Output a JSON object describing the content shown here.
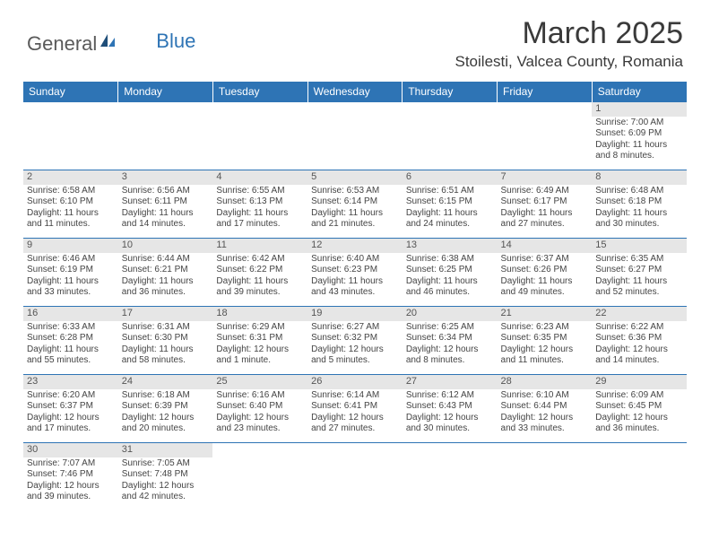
{
  "logo": {
    "general": "General",
    "blue": "Blue"
  },
  "title": "March 2025",
  "location": "Stoilesti, Valcea County, Romania",
  "colors": {
    "header_bg": "#2e74b5",
    "header_text": "#ffffff",
    "border": "#2e74b5",
    "daynum_bg": "#e6e6e6"
  },
  "weekdays": [
    "Sunday",
    "Monday",
    "Tuesday",
    "Wednesday",
    "Thursday",
    "Friday",
    "Saturday"
  ],
  "weeks": [
    [
      {
        "n": "",
        "sr": "",
        "ss": "",
        "dl": ""
      },
      {
        "n": "",
        "sr": "",
        "ss": "",
        "dl": ""
      },
      {
        "n": "",
        "sr": "",
        "ss": "",
        "dl": ""
      },
      {
        "n": "",
        "sr": "",
        "ss": "",
        "dl": ""
      },
      {
        "n": "",
        "sr": "",
        "ss": "",
        "dl": ""
      },
      {
        "n": "",
        "sr": "",
        "ss": "",
        "dl": ""
      },
      {
        "n": "1",
        "sr": "Sunrise: 7:00 AM",
        "ss": "Sunset: 6:09 PM",
        "dl": "Daylight: 11 hours and 8 minutes."
      }
    ],
    [
      {
        "n": "2",
        "sr": "Sunrise: 6:58 AM",
        "ss": "Sunset: 6:10 PM",
        "dl": "Daylight: 11 hours and 11 minutes."
      },
      {
        "n": "3",
        "sr": "Sunrise: 6:56 AM",
        "ss": "Sunset: 6:11 PM",
        "dl": "Daylight: 11 hours and 14 minutes."
      },
      {
        "n": "4",
        "sr": "Sunrise: 6:55 AM",
        "ss": "Sunset: 6:13 PM",
        "dl": "Daylight: 11 hours and 17 minutes."
      },
      {
        "n": "5",
        "sr": "Sunrise: 6:53 AM",
        "ss": "Sunset: 6:14 PM",
        "dl": "Daylight: 11 hours and 21 minutes."
      },
      {
        "n": "6",
        "sr": "Sunrise: 6:51 AM",
        "ss": "Sunset: 6:15 PM",
        "dl": "Daylight: 11 hours and 24 minutes."
      },
      {
        "n": "7",
        "sr": "Sunrise: 6:49 AM",
        "ss": "Sunset: 6:17 PM",
        "dl": "Daylight: 11 hours and 27 minutes."
      },
      {
        "n": "8",
        "sr": "Sunrise: 6:48 AM",
        "ss": "Sunset: 6:18 PM",
        "dl": "Daylight: 11 hours and 30 minutes."
      }
    ],
    [
      {
        "n": "9",
        "sr": "Sunrise: 6:46 AM",
        "ss": "Sunset: 6:19 PM",
        "dl": "Daylight: 11 hours and 33 minutes."
      },
      {
        "n": "10",
        "sr": "Sunrise: 6:44 AM",
        "ss": "Sunset: 6:21 PM",
        "dl": "Daylight: 11 hours and 36 minutes."
      },
      {
        "n": "11",
        "sr": "Sunrise: 6:42 AM",
        "ss": "Sunset: 6:22 PM",
        "dl": "Daylight: 11 hours and 39 minutes."
      },
      {
        "n": "12",
        "sr": "Sunrise: 6:40 AM",
        "ss": "Sunset: 6:23 PM",
        "dl": "Daylight: 11 hours and 43 minutes."
      },
      {
        "n": "13",
        "sr": "Sunrise: 6:38 AM",
        "ss": "Sunset: 6:25 PM",
        "dl": "Daylight: 11 hours and 46 minutes."
      },
      {
        "n": "14",
        "sr": "Sunrise: 6:37 AM",
        "ss": "Sunset: 6:26 PM",
        "dl": "Daylight: 11 hours and 49 minutes."
      },
      {
        "n": "15",
        "sr": "Sunrise: 6:35 AM",
        "ss": "Sunset: 6:27 PM",
        "dl": "Daylight: 11 hours and 52 minutes."
      }
    ],
    [
      {
        "n": "16",
        "sr": "Sunrise: 6:33 AM",
        "ss": "Sunset: 6:28 PM",
        "dl": "Daylight: 11 hours and 55 minutes."
      },
      {
        "n": "17",
        "sr": "Sunrise: 6:31 AM",
        "ss": "Sunset: 6:30 PM",
        "dl": "Daylight: 11 hours and 58 minutes."
      },
      {
        "n": "18",
        "sr": "Sunrise: 6:29 AM",
        "ss": "Sunset: 6:31 PM",
        "dl": "Daylight: 12 hours and 1 minute."
      },
      {
        "n": "19",
        "sr": "Sunrise: 6:27 AM",
        "ss": "Sunset: 6:32 PM",
        "dl": "Daylight: 12 hours and 5 minutes."
      },
      {
        "n": "20",
        "sr": "Sunrise: 6:25 AM",
        "ss": "Sunset: 6:34 PM",
        "dl": "Daylight: 12 hours and 8 minutes."
      },
      {
        "n": "21",
        "sr": "Sunrise: 6:23 AM",
        "ss": "Sunset: 6:35 PM",
        "dl": "Daylight: 12 hours and 11 minutes."
      },
      {
        "n": "22",
        "sr": "Sunrise: 6:22 AM",
        "ss": "Sunset: 6:36 PM",
        "dl": "Daylight: 12 hours and 14 minutes."
      }
    ],
    [
      {
        "n": "23",
        "sr": "Sunrise: 6:20 AM",
        "ss": "Sunset: 6:37 PM",
        "dl": "Daylight: 12 hours and 17 minutes."
      },
      {
        "n": "24",
        "sr": "Sunrise: 6:18 AM",
        "ss": "Sunset: 6:39 PM",
        "dl": "Daylight: 12 hours and 20 minutes."
      },
      {
        "n": "25",
        "sr": "Sunrise: 6:16 AM",
        "ss": "Sunset: 6:40 PM",
        "dl": "Daylight: 12 hours and 23 minutes."
      },
      {
        "n": "26",
        "sr": "Sunrise: 6:14 AM",
        "ss": "Sunset: 6:41 PM",
        "dl": "Daylight: 12 hours and 27 minutes."
      },
      {
        "n": "27",
        "sr": "Sunrise: 6:12 AM",
        "ss": "Sunset: 6:43 PM",
        "dl": "Daylight: 12 hours and 30 minutes."
      },
      {
        "n": "28",
        "sr": "Sunrise: 6:10 AM",
        "ss": "Sunset: 6:44 PM",
        "dl": "Daylight: 12 hours and 33 minutes."
      },
      {
        "n": "29",
        "sr": "Sunrise: 6:09 AM",
        "ss": "Sunset: 6:45 PM",
        "dl": "Daylight: 12 hours and 36 minutes."
      }
    ],
    [
      {
        "n": "30",
        "sr": "Sunrise: 7:07 AM",
        "ss": "Sunset: 7:46 PM",
        "dl": "Daylight: 12 hours and 39 minutes."
      },
      {
        "n": "31",
        "sr": "Sunrise: 7:05 AM",
        "ss": "Sunset: 7:48 PM",
        "dl": "Daylight: 12 hours and 42 minutes."
      },
      {
        "n": "",
        "sr": "",
        "ss": "",
        "dl": ""
      },
      {
        "n": "",
        "sr": "",
        "ss": "",
        "dl": ""
      },
      {
        "n": "",
        "sr": "",
        "ss": "",
        "dl": ""
      },
      {
        "n": "",
        "sr": "",
        "ss": "",
        "dl": ""
      },
      {
        "n": "",
        "sr": "",
        "ss": "",
        "dl": ""
      }
    ]
  ]
}
